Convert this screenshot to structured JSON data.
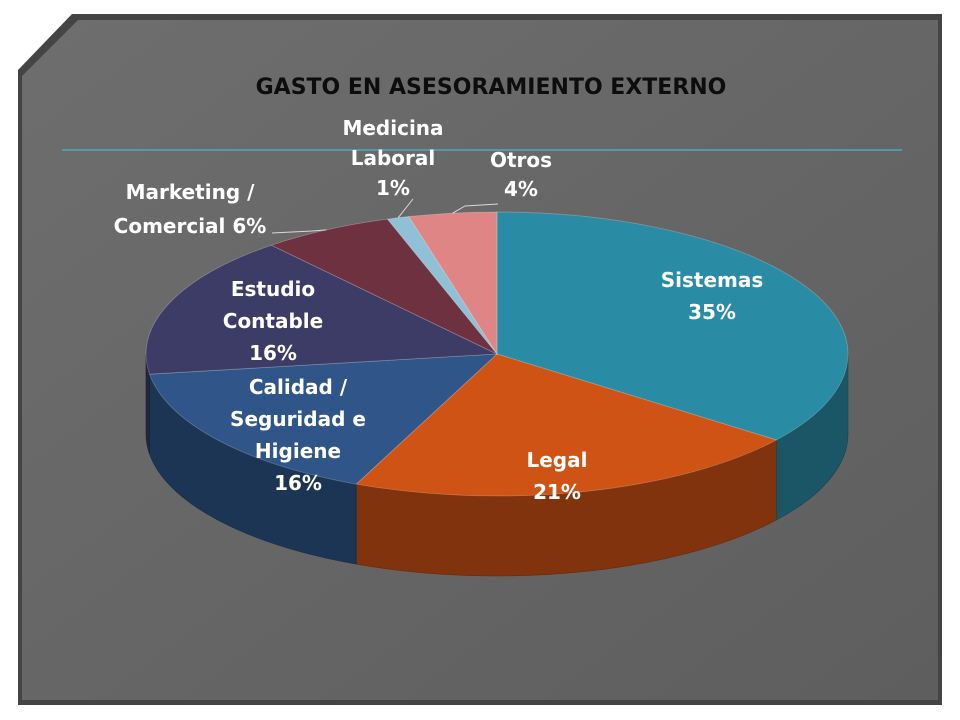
{
  "chart_data": {
    "type": "pie",
    "title": "GASTO EN ASESORAMIENTO EXTERNO",
    "categories": [
      "Sistemas",
      "Legal",
      "Calidad / Seguridad e Higiene",
      "Estudio Contable",
      "Marketing / Comercial",
      "Medicina Laboral",
      "Otros"
    ],
    "values": [
      35,
      21,
      16,
      16,
      6,
      1,
      4
    ],
    "unit": "%",
    "colors": [
      "#2a8ba4",
      "#cf5314",
      "#2f5589",
      "#3d3c66",
      "#6d3140",
      "#8fc0d6",
      "#e08585"
    ],
    "labels": [
      {
        "lines": [
          "Sistemas",
          "35%"
        ]
      },
      {
        "lines": [
          "Legal",
          "21%"
        ]
      },
      {
        "lines": [
          "Calidad /",
          "Seguridad e",
          "Higiene",
          "16%"
        ]
      },
      {
        "lines": [
          "Estudio",
          "Contable",
          "16%"
        ]
      },
      {
        "lines": [
          "Marketing /",
          "Comercial  6%"
        ]
      },
      {
        "lines": [
          "Medicina",
          "Laboral",
          "1%"
        ]
      },
      {
        "lines": [
          "Otros",
          "4%"
        ]
      }
    ],
    "style": "3d-pie",
    "start_angle": "12 o'clock, clockwise"
  }
}
